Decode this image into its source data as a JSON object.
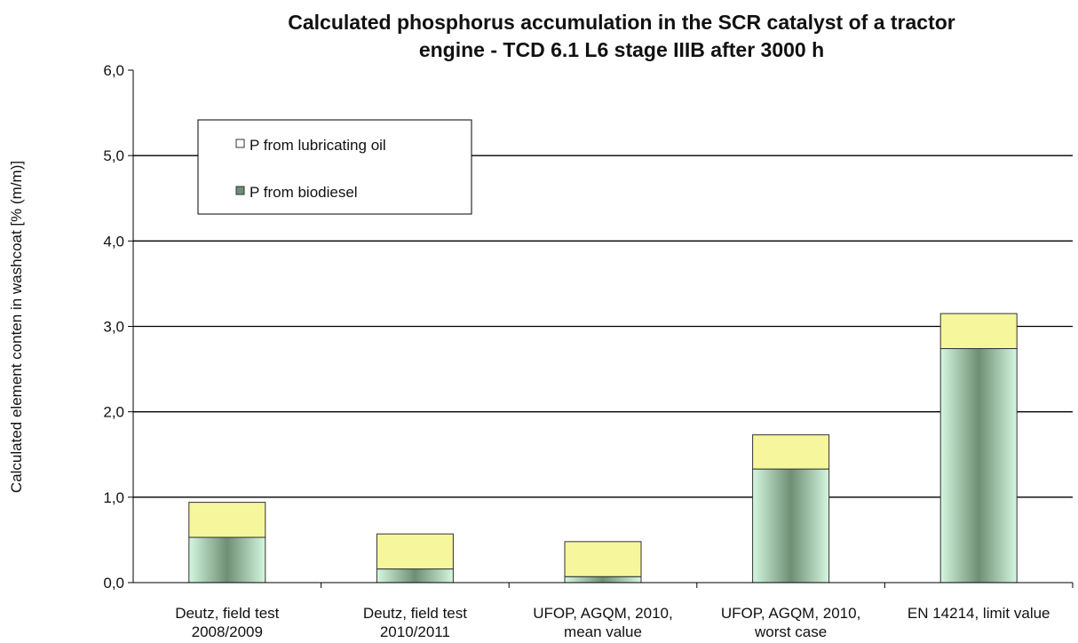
{
  "chart_data": {
    "type": "stacked_bar",
    "title": [
      "Calculated phosphorus accumulation in the SCR catalyst of a tractor",
      "engine - TCD 6.1 L6 stage IIIB after 3000 h"
    ],
    "y_label": "Calculated element conten in washcoat [% (m/m)]",
    "categories": [
      [
        "Deutz, field test",
        "2008/2009"
      ],
      [
        "Deutz, field test",
        "2010/2011"
      ],
      [
        "UFOP, AGQM, 2010,",
        "mean value"
      ],
      [
        "UFOP, AGQM, 2010,",
        "worst case"
      ],
      [
        "EN 14214, limit value"
      ]
    ],
    "series": [
      {
        "name": "P from biodiesel",
        "color": "#6f8f74",
        "values": [
          0.53,
          0.16,
          0.07,
          1.33,
          2.74
        ]
      },
      {
        "name": "P from lubricating oil",
        "color": "#f6f69c",
        "values": [
          0.41,
          0.41,
          0.41,
          0.4,
          0.41
        ]
      }
    ],
    "ylim": [
      0,
      6
    ],
    "yticks": [
      {
        "value": 0,
        "label": "0,0"
      },
      {
        "value": 1,
        "label": "1,0"
      },
      {
        "value": 2,
        "label": "2,0"
      },
      {
        "value": 3,
        "label": "3,0"
      },
      {
        "value": 4,
        "label": "4,0"
      },
      {
        "value": 5,
        "label": "5,0"
      },
      {
        "value": 6,
        "label": "6,0"
      }
    ],
    "grid": true
  }
}
